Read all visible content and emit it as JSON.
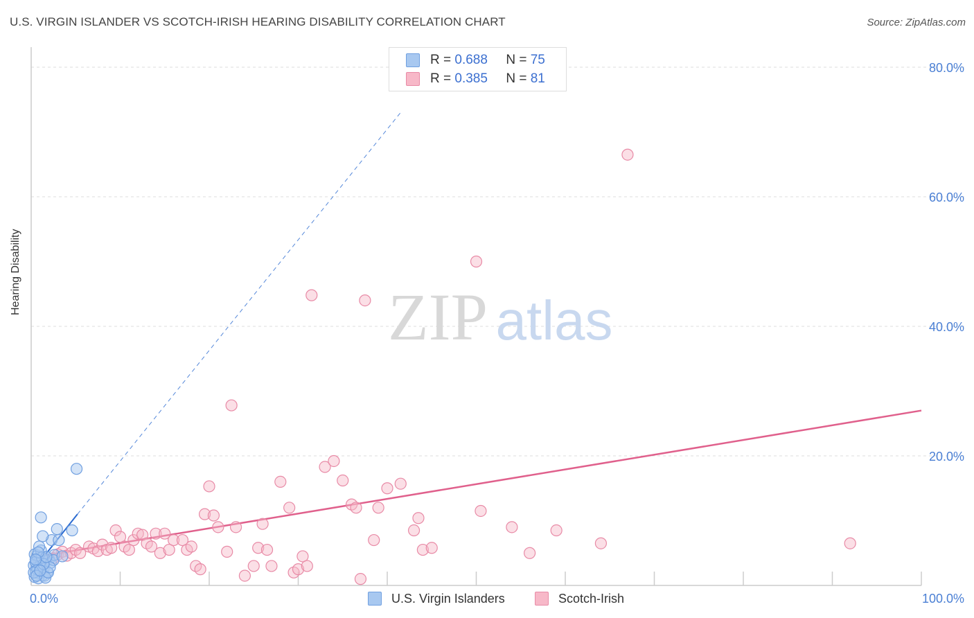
{
  "title": "U.S. VIRGIN ISLANDER VS SCOTCH-IRISH HEARING DISABILITY CORRELATION CHART",
  "source": "Source: ZipAtlas.com",
  "watermark": {
    "zip": "ZIP",
    "atlas": "atlas"
  },
  "legend_top": {
    "series1": {
      "r_label": "R =",
      "r_value": "0.688",
      "n_label": "N =",
      "n_value": "75"
    },
    "series2": {
      "r_label": "R =",
      "r_value": "0.385",
      "n_label": "N =",
      "n_value": "81"
    }
  },
  "colors": {
    "blue_fill": "#a8c8f0",
    "blue_stroke": "#6f9fe0",
    "blue_line": "#2a6ad0",
    "pink_fill": "#f7b8c8",
    "pink_stroke": "#e88aa6",
    "pink_line": "#e0608c",
    "grid": "#dddddd",
    "tick_label": "#4a7fd4"
  },
  "chart_data": {
    "type": "scatter",
    "title": "U.S. VIRGIN ISLANDER VS SCOTCH-IRISH HEARING DISABILITY CORRELATION CHART",
    "xlabel": "",
    "ylabel": "Hearing Disability",
    "xlim": [
      0,
      100
    ],
    "ylim": [
      0,
      85
    ],
    "x_tick_labels": [
      "0.0%",
      "100.0%"
    ],
    "y_ticks": [
      20,
      40,
      60,
      80
    ],
    "y_tick_labels": [
      "20.0%",
      "40.0%",
      "60.0%",
      "80.0%"
    ],
    "legend_position": "bottom-center",
    "series": [
      {
        "name": "U.S. Virgin Islanders",
        "r": 0.688,
        "n": 75,
        "trend": {
          "x": [
            0.3,
            5.2
          ],
          "y": [
            2.5,
            11.0
          ]
        },
        "trend_extended": {
          "x": [
            5.2,
            41.5
          ],
          "y": [
            11.0,
            73.0
          ]
        },
        "points": [
          [
            0.4,
            4.8
          ],
          [
            0.6,
            3.9
          ],
          [
            0.8,
            3.4
          ],
          [
            1.0,
            4.1
          ],
          [
            1.2,
            2.9
          ],
          [
            0.5,
            2.2
          ],
          [
            0.9,
            1.8
          ],
          [
            1.4,
            2.6
          ],
          [
            1.7,
            3.8
          ],
          [
            0.3,
            3.1
          ],
          [
            0.7,
            4.6
          ],
          [
            1.1,
            5.4
          ],
          [
            1.3,
            1.6
          ],
          [
            0.6,
            2.7
          ],
          [
            2.0,
            4.0
          ],
          [
            2.2,
            3.5
          ],
          [
            1.8,
            2.1
          ],
          [
            0.4,
            1.3
          ],
          [
            0.8,
            1.1
          ],
          [
            1.5,
            1.5
          ],
          [
            1.0,
            3.0
          ],
          [
            0.5,
            3.6
          ],
          [
            0.7,
            2.4
          ],
          [
            1.2,
            4.3
          ],
          [
            1.6,
            1.2
          ],
          [
            2.6,
            4.7
          ],
          [
            2.5,
            3.9
          ],
          [
            3.5,
            4.5
          ],
          [
            2.3,
            7.0
          ],
          [
            1.3,
            7.6
          ],
          [
            3.1,
            7.0
          ],
          [
            2.9,
            8.7
          ],
          [
            4.6,
            8.5
          ],
          [
            1.1,
            10.5
          ],
          [
            5.1,
            18.0
          ],
          [
            0.9,
            6.0
          ],
          [
            1.9,
            2.0
          ],
          [
            2.1,
            2.8
          ],
          [
            0.3,
            2.0
          ],
          [
            0.6,
            1.5
          ],
          [
            1.4,
            3.3
          ],
          [
            1.7,
            4.4
          ],
          [
            0.8,
            5.1
          ],
          [
            1.0,
            2.3
          ],
          [
            0.5,
            4.0
          ]
        ]
      },
      {
        "name": "Scotch-Irish",
        "r": 0.385,
        "n": 81,
        "trend": {
          "x": [
            1.0,
            100.0
          ],
          "y": [
            4.5,
            27.0
          ]
        },
        "points": [
          [
            1.5,
            4.0
          ],
          [
            2.5,
            4.2
          ],
          [
            3.0,
            4.8
          ],
          [
            3.5,
            5.2
          ],
          [
            4.0,
            4.6
          ],
          [
            4.5,
            5.0
          ],
          [
            5.0,
            5.5
          ],
          [
            5.5,
            5.0
          ],
          [
            6.5,
            6.0
          ],
          [
            7.0,
            5.7
          ],
          [
            7.5,
            5.3
          ],
          [
            8.0,
            6.3
          ],
          [
            8.5,
            5.5
          ],
          [
            9.0,
            5.8
          ],
          [
            9.5,
            8.5
          ],
          [
            10.0,
            7.5
          ],
          [
            10.5,
            6.0
          ],
          [
            11.0,
            5.5
          ],
          [
            11.5,
            7.0
          ],
          [
            12.0,
            8.0
          ],
          [
            12.5,
            7.8
          ],
          [
            13.0,
            6.5
          ],
          [
            13.5,
            6.0
          ],
          [
            14.0,
            8.0
          ],
          [
            14.5,
            5.0
          ],
          [
            15.0,
            8.0
          ],
          [
            15.5,
            5.5
          ],
          [
            16.0,
            7.0
          ],
          [
            17.0,
            7.0
          ],
          [
            17.5,
            5.5
          ],
          [
            18.0,
            6.0
          ],
          [
            18.5,
            3.0
          ],
          [
            19.0,
            2.5
          ],
          [
            19.5,
            11.0
          ],
          [
            20.0,
            15.3
          ],
          [
            20.5,
            10.8
          ],
          [
            21.0,
            9.0
          ],
          [
            22.0,
            5.2
          ],
          [
            22.5,
            27.8
          ],
          [
            23.0,
            9.0
          ],
          [
            24.0,
            1.5
          ],
          [
            25.0,
            3.0
          ],
          [
            25.5,
            5.8
          ],
          [
            26.0,
            9.5
          ],
          [
            26.5,
            5.5
          ],
          [
            27.0,
            3.0
          ],
          [
            28.0,
            16.0
          ],
          [
            29.0,
            12.0
          ],
          [
            29.5,
            2.0
          ],
          [
            30.0,
            2.5
          ],
          [
            30.5,
            4.5
          ],
          [
            31.0,
            3.0
          ],
          [
            31.5,
            44.8
          ],
          [
            33.0,
            18.3
          ],
          [
            34.0,
            19.2
          ],
          [
            35.0,
            16.2
          ],
          [
            36.0,
            12.5
          ],
          [
            36.5,
            12.0
          ],
          [
            37.0,
            1.0
          ],
          [
            37.5,
            44.0
          ],
          [
            38.5,
            7.0
          ],
          [
            39.0,
            12.0
          ],
          [
            40.0,
            15.0
          ],
          [
            41.5,
            15.7
          ],
          [
            43.0,
            8.5
          ],
          [
            43.5,
            10.4
          ],
          [
            44.0,
            5.5
          ],
          [
            45.0,
            5.8
          ],
          [
            50.0,
            50.0
          ],
          [
            50.5,
            11.5
          ],
          [
            54.0,
            9.0
          ],
          [
            56.0,
            5.0
          ],
          [
            59.0,
            8.5
          ],
          [
            64.0,
            6.5
          ],
          [
            67.0,
            66.5
          ],
          [
            92.0,
            6.5
          ]
        ]
      }
    ]
  }
}
